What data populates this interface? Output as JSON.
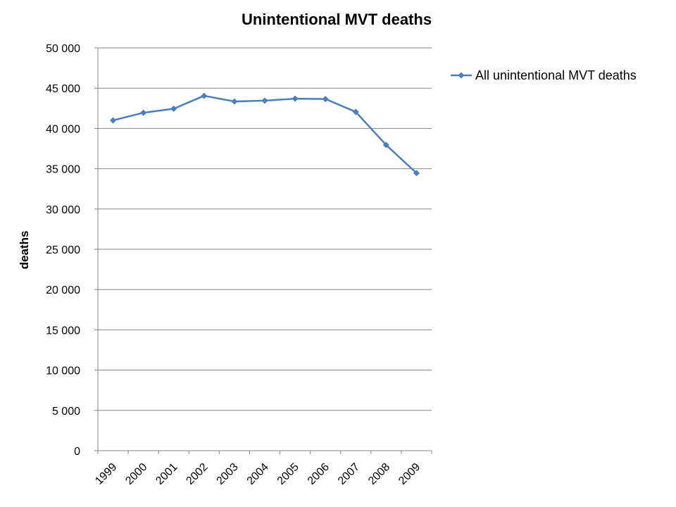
{
  "chart_data": {
    "type": "line",
    "title": "Unintentional MVT deaths",
    "xlabel": "",
    "ylabel": "deaths",
    "categories": [
      "1999",
      "2000",
      "2001",
      "2002",
      "2003",
      "2004",
      "2005",
      "2006",
      "2007",
      "2008",
      "2009"
    ],
    "series": [
      {
        "name": "All unintentional MVT deaths",
        "color": "#4a7ebb",
        "marker": "diamond",
        "values": [
          41000,
          41950,
          42450,
          44050,
          43350,
          43450,
          43700,
          43650,
          42050,
          37950,
          34450
        ]
      }
    ],
    "ylim": [
      0,
      50000
    ],
    "yticks": [
      0,
      5000,
      10000,
      15000,
      20000,
      25000,
      30000,
      35000,
      40000,
      45000,
      50000
    ],
    "ytick_labels": [
      "0",
      "5 000",
      "10 000",
      "15 000",
      "20 000",
      "25 000",
      "30 000",
      "35 000",
      "40 000",
      "45 000",
      "50 000"
    ],
    "grid": "horizontal",
    "legend_position": "right"
  }
}
